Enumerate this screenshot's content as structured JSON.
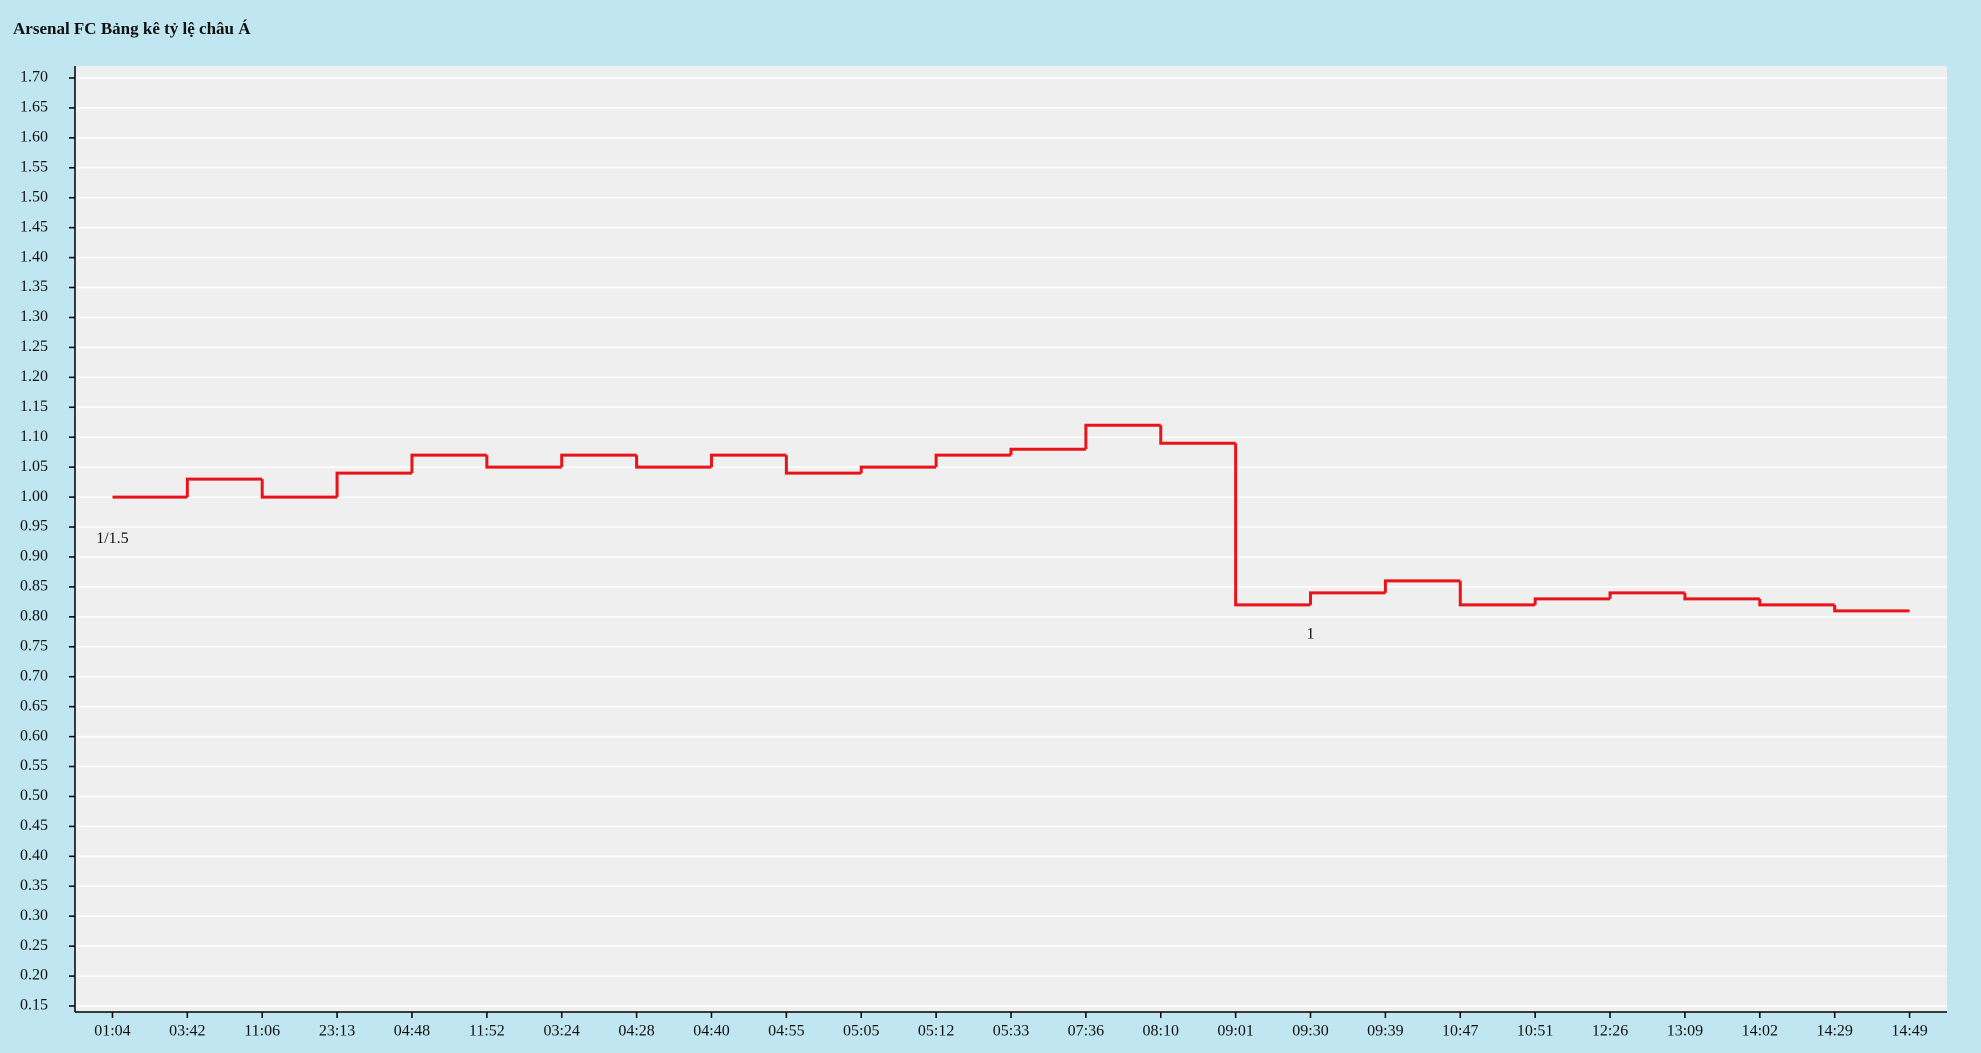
{
  "chart_data": {
    "type": "step",
    "title": "Arsenal FC Bảng kê tỷ lệ châu Á",
    "categories": [
      "01:04",
      "03:42",
      "11:06",
      "23:13",
      "04:48",
      "11:52",
      "03:24",
      "04:28",
      "04:40",
      "04:55",
      "05:05",
      "05:12",
      "05:33",
      "07:36",
      "08:10",
      "09:01",
      "09:30",
      "09:39",
      "10:47",
      "10:51",
      "12:26",
      "13:09",
      "14:02",
      "14:29",
      "14:49"
    ],
    "values": [
      1.0,
      1.03,
      1.0,
      1.04,
      1.07,
      1.05,
      1.07,
      1.05,
      1.07,
      1.04,
      1.05,
      1.07,
      1.08,
      1.12,
      1.09,
      0.82,
      0.84,
      0.86,
      0.82,
      0.83,
      0.84,
      0.83,
      0.82,
      0.81,
      0.81
    ],
    "color": "#e8141a",
    "ylim": [
      0.14,
      1.72
    ],
    "yticks": [
      {
        "value": 0.15,
        "label": "0.15"
      },
      {
        "value": 0.2,
        "label": "0.20"
      },
      {
        "value": 0.25,
        "label": "0.25"
      },
      {
        "value": 0.3,
        "label": "0.30"
      },
      {
        "value": 0.35,
        "label": "0.35"
      },
      {
        "value": 0.4,
        "label": "0.40"
      },
      {
        "value": 0.45,
        "label": "0.45"
      },
      {
        "value": 0.5,
        "label": "0.50"
      },
      {
        "value": 0.55,
        "label": "0.55"
      },
      {
        "value": 0.6,
        "label": "0.60"
      },
      {
        "value": 0.65,
        "label": "0.65"
      },
      {
        "value": 0.7,
        "label": "0.70"
      },
      {
        "value": 0.75,
        "label": "0.75"
      },
      {
        "value": 0.8,
        "label": "0.80"
      },
      {
        "value": 0.85,
        "label": "0.85"
      },
      {
        "value": 0.9,
        "label": "0.90"
      },
      {
        "value": 0.95,
        "label": "0.95"
      },
      {
        "value": 1.0,
        "label": "1.00"
      },
      {
        "value": 1.05,
        "label": "1.05"
      },
      {
        "value": 1.1,
        "label": "1.10"
      },
      {
        "value": 1.15,
        "label": "1.15"
      },
      {
        "value": 1.2,
        "label": "1.20"
      },
      {
        "value": 1.25,
        "label": "1.25"
      },
      {
        "value": 1.3,
        "label": "1.30"
      },
      {
        "value": 1.35,
        "label": "1.35"
      },
      {
        "value": 1.4,
        "label": "1.40"
      },
      {
        "value": 1.45,
        "label": "1.45"
      },
      {
        "value": 1.5,
        "label": "1.50"
      },
      {
        "value": 1.55,
        "label": "1.55"
      },
      {
        "value": 1.6,
        "label": "1.60"
      },
      {
        "value": 1.65,
        "label": "1.65"
      },
      {
        "value": 1.7,
        "label": "1.70"
      }
    ],
    "grid": true,
    "annotations": [
      {
        "x": "01:04",
        "text": "1/1.5"
      },
      {
        "x": "09:30",
        "text": "1"
      }
    ]
  }
}
